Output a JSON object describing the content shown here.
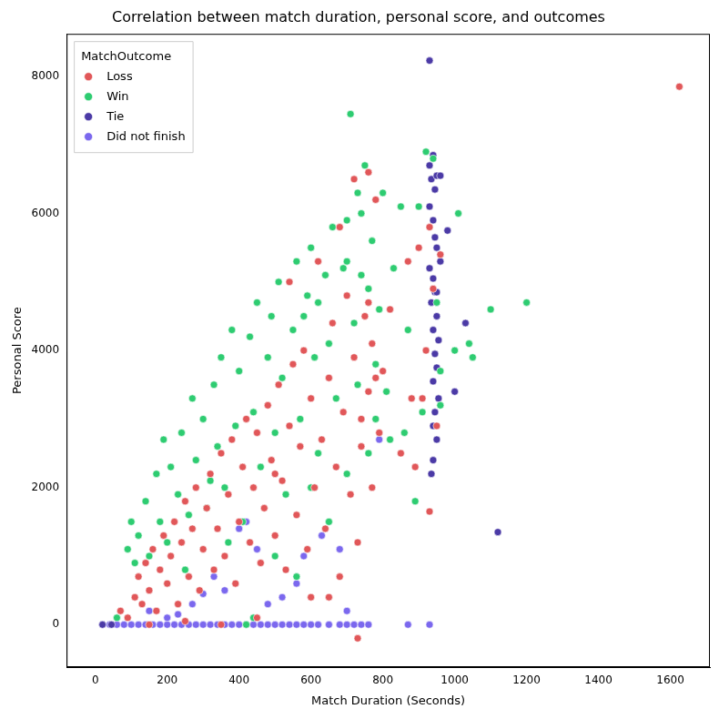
{
  "chart_data": {
    "type": "scatter",
    "title": "Correlation between match duration, personal score, and outcomes",
    "x_label": "Match Duration (Seconds)",
    "y_label": "Personal Score",
    "legend_title": "MatchOutcome",
    "legend": "upper left",
    "grid": false,
    "xlim": [
      -80,
      1710
    ],
    "xticks": [
      0,
      200,
      400,
      600,
      800,
      1000,
      1200,
      1400,
      1600
    ],
    "ylim": [
      -620,
      8620
    ],
    "yticks": [
      0,
      2000,
      4000,
      6000,
      8000
    ],
    "series": [
      {
        "name": "Loss",
        "color": "#e15759",
        "x": [
          70,
          90,
          110,
          120,
          130,
          140,
          150,
          160,
          170,
          180,
          190,
          200,
          210,
          220,
          230,
          240,
          250,
          260,
          270,
          280,
          290,
          300,
          310,
          320,
          330,
          340,
          350,
          360,
          370,
          380,
          390,
          400,
          410,
          420,
          430,
          440,
          450,
          460,
          470,
          480,
          490,
          500,
          510,
          520,
          530,
          540,
          550,
          560,
          570,
          580,
          590,
          600,
          610,
          620,
          630,
          640,
          650,
          660,
          670,
          680,
          690,
          700,
          710,
          720,
          730,
          740,
          750,
          760,
          770,
          780,
          790,
          800,
          820,
          850,
          870,
          890,
          900,
          910,
          920,
          930,
          940,
          950,
          960,
          680,
          720,
          760,
          540,
          600,
          450,
          350,
          250,
          150,
          740,
          760,
          770,
          780,
          1625,
          730,
          500,
          650,
          930,
          880
        ],
        "values": [
          200,
          100,
          400,
          700,
          300,
          900,
          500,
          1100,
          200,
          800,
          1300,
          600,
          1000,
          1500,
          300,
          1200,
          1800,
          700,
          1400,
          2000,
          500,
          1100,
          1700,
          2200,
          800,
          1400,
          2500,
          1000,
          1900,
          2700,
          600,
          1500,
          2300,
          3000,
          1200,
          2000,
          2800,
          900,
          1700,
          3200,
          2400,
          1300,
          3500,
          2100,
          800,
          2900,
          3800,
          1600,
          2600,
          4000,
          1100,
          3300,
          2000,
          5300,
          2700,
          1400,
          3600,
          4400,
          2300,
          700,
          3100,
          4800,
          1900,
          3900,
          -200,
          2600,
          4500,
          3400,
          4100,
          6200,
          2800,
          3700,
          4600,
          2500,
          5300,
          2300,
          5500,
          3300,
          4000,
          5800,
          4900,
          2900,
          5400,
          5800,
          6500,
          6600,
          5000,
          400,
          100,
          0,
          50,
          0,
          3000,
          4700,
          2000,
          3600,
          7850,
          1200,
          2200,
          400,
          1650,
          3300
        ]
      },
      {
        "name": "Win",
        "color": "#2ecc71",
        "x": [
          60,
          90,
          100,
          110,
          120,
          140,
          150,
          170,
          180,
          190,
          200,
          210,
          230,
          240,
          260,
          270,
          280,
          300,
          310,
          330,
          340,
          350,
          360,
          380,
          390,
          400,
          410,
          430,
          440,
          450,
          460,
          480,
          490,
          500,
          510,
          520,
          530,
          550,
          560,
          570,
          590,
          600,
          610,
          620,
          640,
          650,
          660,
          670,
          690,
          700,
          710,
          720,
          730,
          740,
          750,
          760,
          770,
          780,
          790,
          800,
          810,
          830,
          850,
          870,
          890,
          900,
          910,
          920,
          940,
          950,
          960,
          1000,
          1010,
          1040,
          1050,
          1100,
          1200,
          420,
          440,
          500,
          560,
          600,
          650,
          700,
          760,
          780,
          320,
          250,
          370,
          580,
          620,
          700,
          730,
          740,
          820,
          860,
          960
        ],
        "values": [
          100,
          1100,
          1500,
          900,
          1300,
          1800,
          1000,
          2200,
          1500,
          2700,
          1200,
          2300,
          1900,
          2800,
          1600,
          3300,
          2400,
          3000,
          1700,
          3500,
          2600,
          3900,
          2000,
          4300,
          2900,
          3700,
          1500,
          4200,
          3100,
          4700,
          2300,
          3900,
          4500,
          2800,
          5000,
          3600,
          1900,
          4300,
          5300,
          3000,
          4800,
          5500,
          3900,
          2500,
          5100,
          4100,
          5800,
          3300,
          5200,
          5900,
          7450,
          4400,
          3500,
          6000,
          6700,
          4900,
          5600,
          3000,
          4600,
          6300,
          3400,
          5200,
          6100,
          4300,
          1800,
          6100,
          3100,
          6900,
          6800,
          4700,
          3200,
          4000,
          6000,
          4100,
          3900,
          4600,
          4700,
          0,
          100,
          1000,
          700,
          2000,
          1500,
          2200,
          2500,
          3800,
          2100,
          800,
          1200,
          4500,
          4700,
          5300,
          6300,
          5100,
          2700,
          2800,
          3700
        ]
      },
      {
        "name": "Tie",
        "color": "#4b3aa6",
        "x": [
          20,
          45,
          930,
          930,
          935,
          940,
          945,
          950,
          930,
          940,
          950,
          960,
          930,
          940,
          945,
          935,
          950,
          940,
          955,
          945,
          950,
          940,
          955,
          945,
          940,
          950,
          940,
          935,
          980,
          1000,
          1030,
          1120,
          960,
          945,
          950
        ],
        "values": [
          0,
          0,
          8230,
          6700,
          6500,
          6850,
          6350,
          6550,
          6100,
          5900,
          5500,
          5300,
          5200,
          5050,
          4850,
          4700,
          4500,
          4300,
          4150,
          3950,
          3750,
          3550,
          3300,
          3100,
          2900,
          2700,
          2400,
          2200,
          5750,
          3400,
          4400,
          1350,
          6550,
          5650,
          4850
        ]
      },
      {
        "name": "Did not finish",
        "color": "#7b68ee",
        "x": [
          20,
          40,
          60,
          80,
          100,
          120,
          140,
          160,
          180,
          200,
          220,
          240,
          260,
          280,
          300,
          320,
          340,
          360,
          380,
          400,
          420,
          440,
          460,
          480,
          500,
          520,
          540,
          560,
          580,
          600,
          620,
          650,
          680,
          700,
          720,
          740,
          760,
          870,
          930,
          150,
          200,
          300,
          330,
          360,
          400,
          420,
          450,
          480,
          520,
          580,
          630,
          680,
          700,
          790,
          270,
          230,
          560
        ],
        "values": [
          0,
          0,
          0,
          0,
          0,
          0,
          0,
          0,
          0,
          0,
          0,
          0,
          0,
          0,
          0,
          0,
          0,
          0,
          0,
          0,
          0,
          0,
          0,
          0,
          0,
          0,
          0,
          0,
          0,
          0,
          0,
          0,
          0,
          0,
          0,
          0,
          0,
          0,
          0,
          200,
          100,
          450,
          700,
          500,
          1400,
          1500,
          1100,
          300,
          400,
          1000,
          1300,
          1100,
          200,
          2700,
          300,
          150,
          600
        ]
      }
    ]
  }
}
